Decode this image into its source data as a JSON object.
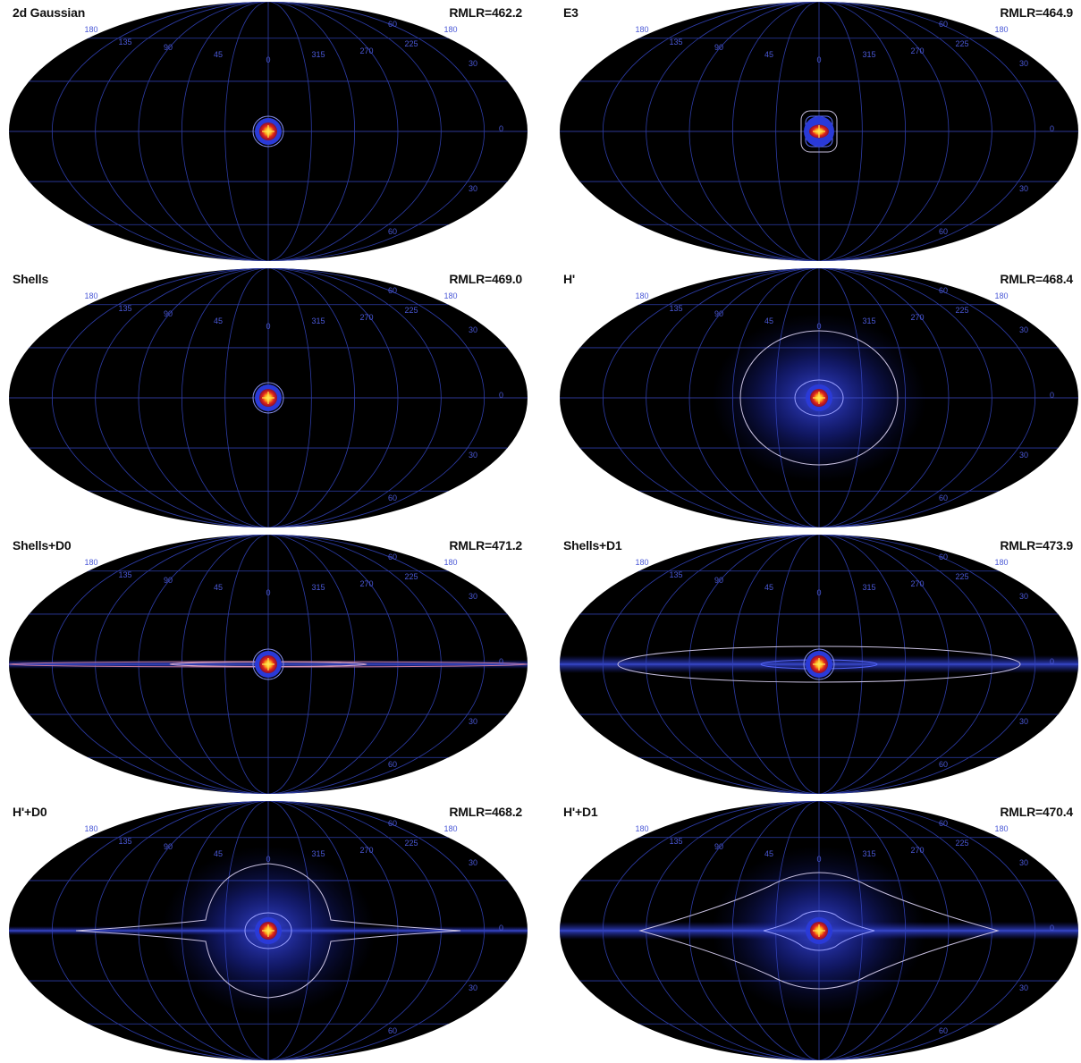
{
  "panels": [
    {
      "name": "2d Gaussian",
      "rmlr": "RMLR=462.2",
      "model": "gaussian"
    },
    {
      "name": "E3",
      "rmlr": "RMLR=464.9",
      "model": "e3"
    },
    {
      "name": "Shells",
      "rmlr": "RMLR=469.0",
      "model": "shells"
    },
    {
      "name": "H'",
      "rmlr": "RMLR=468.4",
      "model": "halo"
    },
    {
      "name": "Shells+D0",
      "rmlr": "RMLR=471.2",
      "model": "shells_d0"
    },
    {
      "name": "Shells+D1",
      "rmlr": "RMLR=473.9",
      "model": "shells_d1"
    },
    {
      "name": "H'+D0",
      "rmlr": "RMLR=468.2",
      "model": "halo_d0"
    },
    {
      "name": "H'+D1",
      "rmlr": "RMLR=470.4",
      "model": "halo_d1"
    }
  ],
  "grid_labels": {
    "longitude": [
      "180",
      "135",
      "90",
      "45",
      "0",
      "315",
      "270",
      "225",
      "180"
    ],
    "latitude": [
      "60",
      "30",
      "0",
      "30",
      "60"
    ]
  },
  "colors": {
    "sky": "#000000",
    "grid": "#3344bb",
    "contour": "#c8c0e0",
    "core_red": "#e0231a",
    "core_yellow": "#ffdd22",
    "halo_blue": "#2a3ad8"
  }
}
